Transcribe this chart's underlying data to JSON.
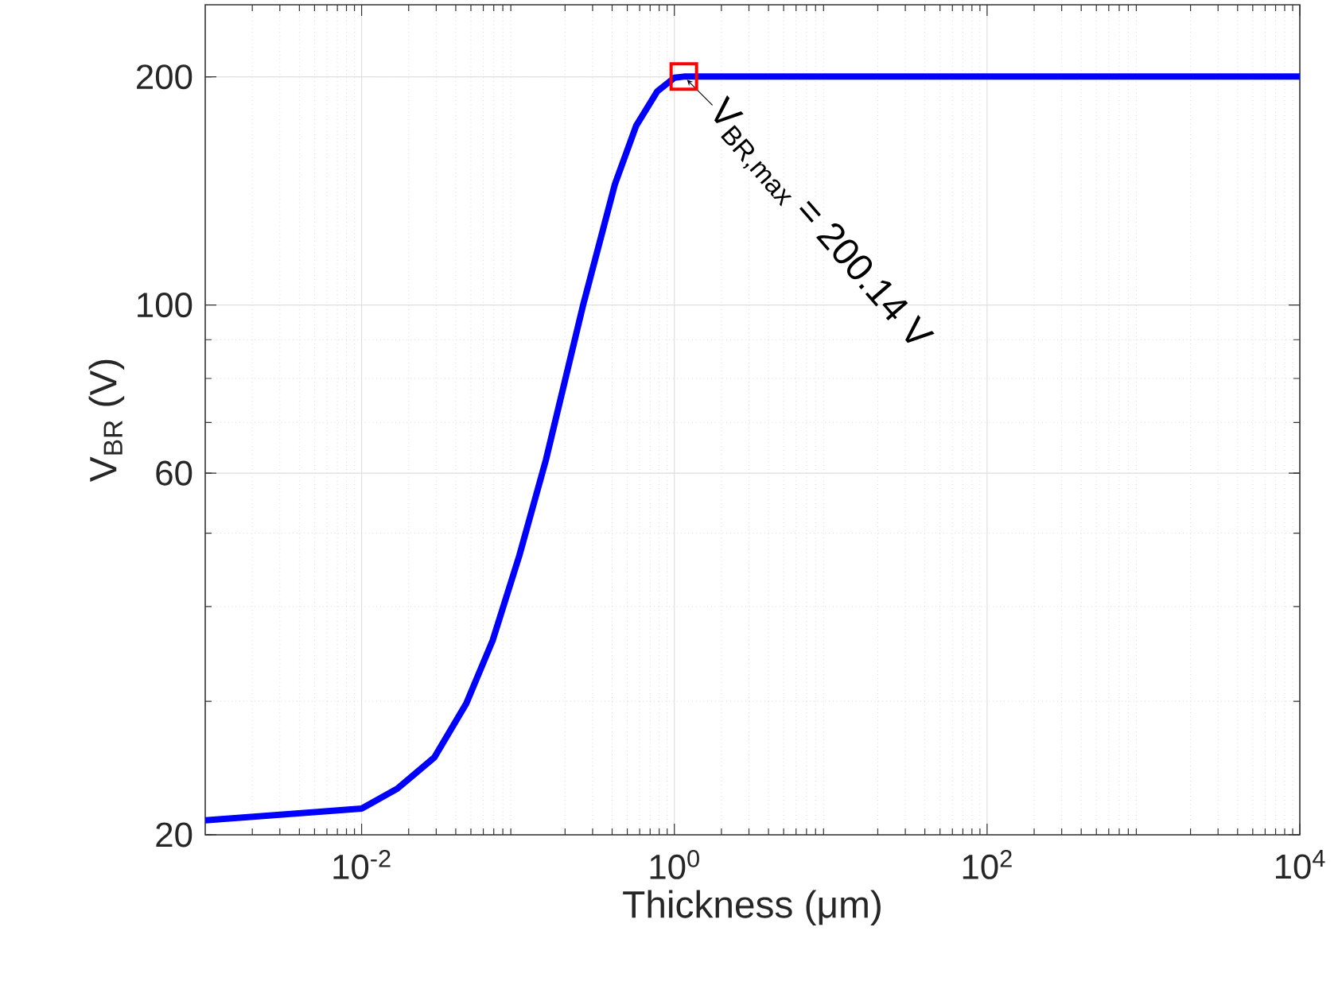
{
  "chart_data": {
    "type": "line",
    "xlabel": "Thickness (μm)",
    "ylabel": "V$_{BR}$ (V)",
    "log": "xy",
    "grid": true,
    "marker": "none",
    "line_style": "solid",
    "xlim": [
      0.001,
      10000
    ],
    "ylim": [
      20,
      249
    ],
    "xticks": [
      {
        "value": 0.01,
        "label": "10$^{-2}$"
      },
      {
        "value": 1,
        "label": "10$^{0}$"
      },
      {
        "value": 100,
        "label": "10$^{2}$"
      },
      {
        "value": 10000,
        "label": "10$^{4}$"
      }
    ],
    "yticks": [
      20,
      60,
      100,
      200
    ],
    "series": [
      {
        "color": "#0000ff",
        "x": [
          0.001,
          0.01,
          0.0169,
          0.0292,
          0.0467,
          0.0689,
          0.102,
          0.151,
          0.261,
          0.417,
          0.57,
          0.778,
          1,
          1.15,
          10,
          100,
          1000,
          10000
        ],
        "values": [
          20.9,
          21.65,
          23.0,
          25.3,
          29.8,
          36.1,
          46.7,
          62.5,
          100,
          144.4,
          172.4,
          191.4,
          199.5,
          200.14,
          200.14,
          200.14,
          200.14,
          200.14
        ]
      }
    ],
    "annotations": [
      {
        "text": "V$_{BR,max}$ = 200.14 V",
        "x": 1.15,
        "y": 200.14
      }
    ]
  }
}
